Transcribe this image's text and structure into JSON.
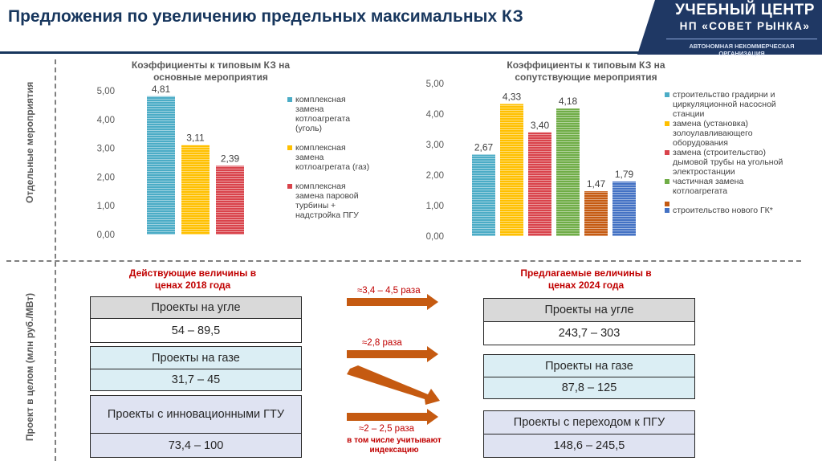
{
  "title": "Предложения по увеличению предельных максимальных КЗ",
  "brand": {
    "line1": "УЧЕБНЫЙ ЦЕНТР",
    "line2": "НП «СОВЕТ РЫНКА»",
    "line3": "АВТОНОМНАЯ НЕКОММЕРЧЕСКАЯ ОРГАНИЗАЦИЯ",
    "color": "#1f3864"
  },
  "side_labels": {
    "top": "Отдельные мероприятия",
    "bottom": "Проект в целом (млн руб./МВт)"
  },
  "chart_data": [
    {
      "type": "bar",
      "title": "Коэффициенты к типовым  КЗ на основные мероприятия",
      "ylim": [
        0,
        5
      ],
      "yticks": [
        "0,00",
        "1,00",
        "2,00",
        "3,00",
        "4,00",
        "5,00"
      ],
      "value_labels": [
        "4,81",
        "3,11",
        "2,39"
      ],
      "series": [
        {
          "name": "комплексная замена котлоагрегата (уголь)",
          "values": [
            4.81
          ],
          "color": "#4bacc6"
        },
        {
          "name": "комплексная замена котлоагрегата (газ)",
          "values": [
            3.11
          ],
          "color": "#ffc000"
        },
        {
          "name": "комплексная замена паровой турбины + надстройка ПГУ",
          "values": [
            2.39
          ],
          "color": "#d9434b"
        }
      ],
      "legend_position": "right",
      "grid": false
    },
    {
      "type": "bar",
      "title": "Коэффициенты к типовым  КЗ на сопутствующие мероприятия",
      "ylim": [
        0,
        5
      ],
      "yticks": [
        "0,00",
        "1,00",
        "2,00",
        "3,00",
        "4,00",
        "5,00"
      ],
      "value_labels": [
        "2,67",
        "4,33",
        "3,40",
        "4,18",
        "1,47",
        "1,79"
      ],
      "series": [
        {
          "name": "строительство градирни и циркуляционной насосной станции",
          "values": [
            2.67
          ],
          "color": "#4bacc6"
        },
        {
          "name": "замена (установка) золоулавливающего оборудования",
          "values": [
            4.33
          ],
          "color": "#ffc000"
        },
        {
          "name": "замена (строительство) дымовой трубы на угольной электростанции",
          "values": [
            3.4
          ],
          "color": "#d9434b"
        },
        {
          "name": "частичная замена котлоагрегата",
          "values": [
            4.18
          ],
          "color": "#70ad47"
        },
        {
          "name": "",
          "values": [
            1.47
          ],
          "color": "#c55a11"
        },
        {
          "name": "строительство нового ГК*",
          "values": [
            1.79
          ],
          "color": "#4472c4"
        }
      ],
      "legend_position": "right",
      "grid": false
    }
  ],
  "current": {
    "heading": "Действующие величины в ценах 2018 года",
    "coal_label": "Проекты на угле",
    "coal_value": "54 – 89,5",
    "gas_label": "Проекты на газе",
    "gas_value": "31,7 – 45",
    "innov_label": "Проекты с инновационными ГТУ",
    "innov_value": "73,4 – 100"
  },
  "proposed": {
    "heading": "Предлагаемые величины в ценах 2024 года",
    "coal_label": "Проекты на угле",
    "coal_value": "243,7 – 303",
    "gas_label": "Проекты на газе",
    "gas_value": "87,8 – 125",
    "pgu_label": "Проекты с переходом к ПГУ",
    "pgu_value": "148,6 – 245,5"
  },
  "arrows": {
    "a1": "≈3,4 – 4,5 раза",
    "a2": "≈2,8 раза",
    "a3": "≈2 – 2,5 раза",
    "note": "в том числе учитывают индексацию",
    "color": "#c55a11"
  }
}
